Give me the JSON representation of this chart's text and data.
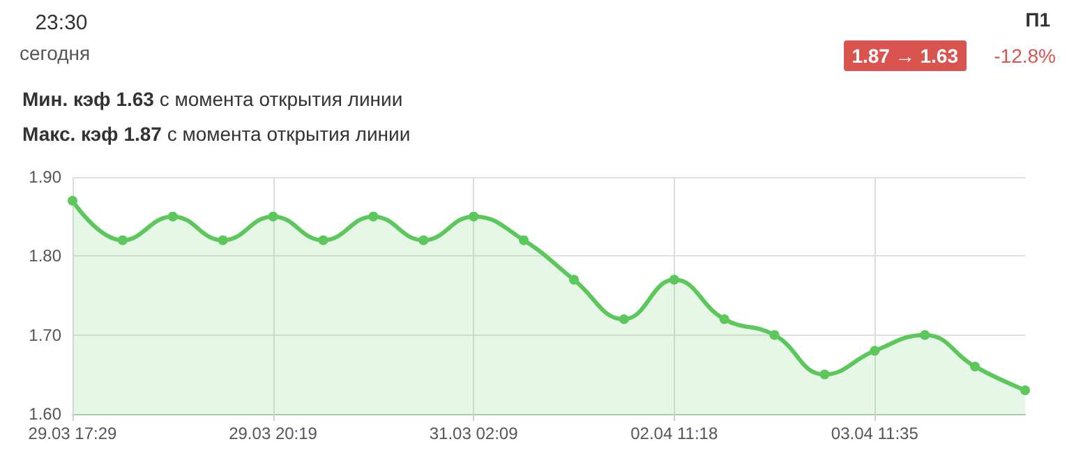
{
  "chart_data": {
    "type": "area",
    "annotations": [
      "23:30",
      "сегодня",
      "П1",
      "1.87 → 1.63",
      "-12.8%",
      "Мин. кэф 1.63 с момента открытия линии",
      "Макс. кэф 1.87 с момента открытия линии"
    ],
    "categories": [
      "29.03 17:29",
      null,
      null,
      null,
      "29.03 20:19",
      null,
      null,
      null,
      "31.03 02:09",
      null,
      null,
      null,
      "02.04 11:18",
      null,
      null,
      null,
      "03.04 11:35",
      null,
      null,
      null
    ],
    "values": [
      1.87,
      1.82,
      1.85,
      1.82,
      1.85,
      1.82,
      1.85,
      1.82,
      1.85,
      1.82,
      1.77,
      1.72,
      1.77,
      1.72,
      1.7,
      1.65,
      1.68,
      1.7,
      1.66,
      1.63
    ],
    "color": "#5cc85c",
    "ylim": [
      1.6,
      1.9
    ],
    "yticks": [
      {
        "value": 1.6,
        "label": "1.60"
      },
      {
        "value": 1.7,
        "label": "1.70"
      },
      {
        "value": 1.8,
        "label": "1.80"
      },
      {
        "value": 1.9,
        "label": "1.90"
      }
    ],
    "grid": true,
    "marker": "circle"
  }
}
